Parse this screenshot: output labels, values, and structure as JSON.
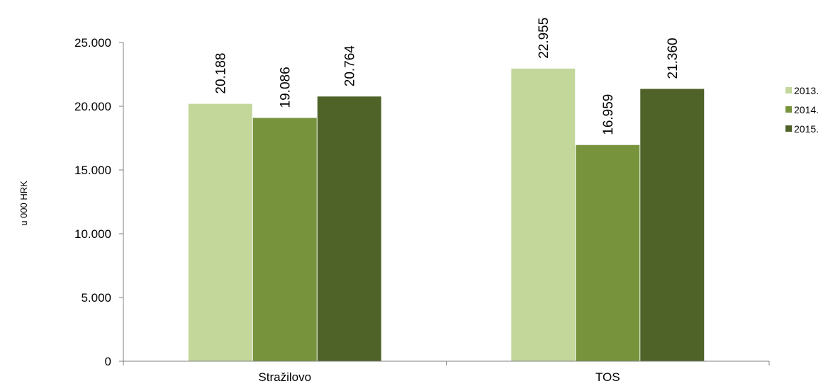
{
  "chart_data": {
    "type": "bar",
    "categories": [
      "Stražilovo",
      "TOS"
    ],
    "series": [
      {
        "name": "2013.",
        "values": [
          20188,
          22955
        ],
        "labels": [
          "20.188",
          "22.955"
        ],
        "color": "#c4d79b"
      },
      {
        "name": "2014.",
        "values": [
          19086,
          16959
        ],
        "labels": [
          "19.086",
          "16.959"
        ],
        "color": "#77933c"
      },
      {
        "name": "2015.",
        "values": [
          20764,
          21360
        ],
        "labels": [
          "20.764",
          "21.360"
        ],
        "color": "#4f6228"
      }
    ],
    "ylabel": "u 000 HRK",
    "ylim": [
      0,
      25000
    ],
    "yticks": [
      0,
      5000,
      10000,
      15000,
      20000,
      25000
    ],
    "ytick_labels": [
      "0",
      "5.000",
      "10.000",
      "15.000",
      "20.000",
      "25.000"
    ],
    "legend": "right",
    "grid": false
  }
}
